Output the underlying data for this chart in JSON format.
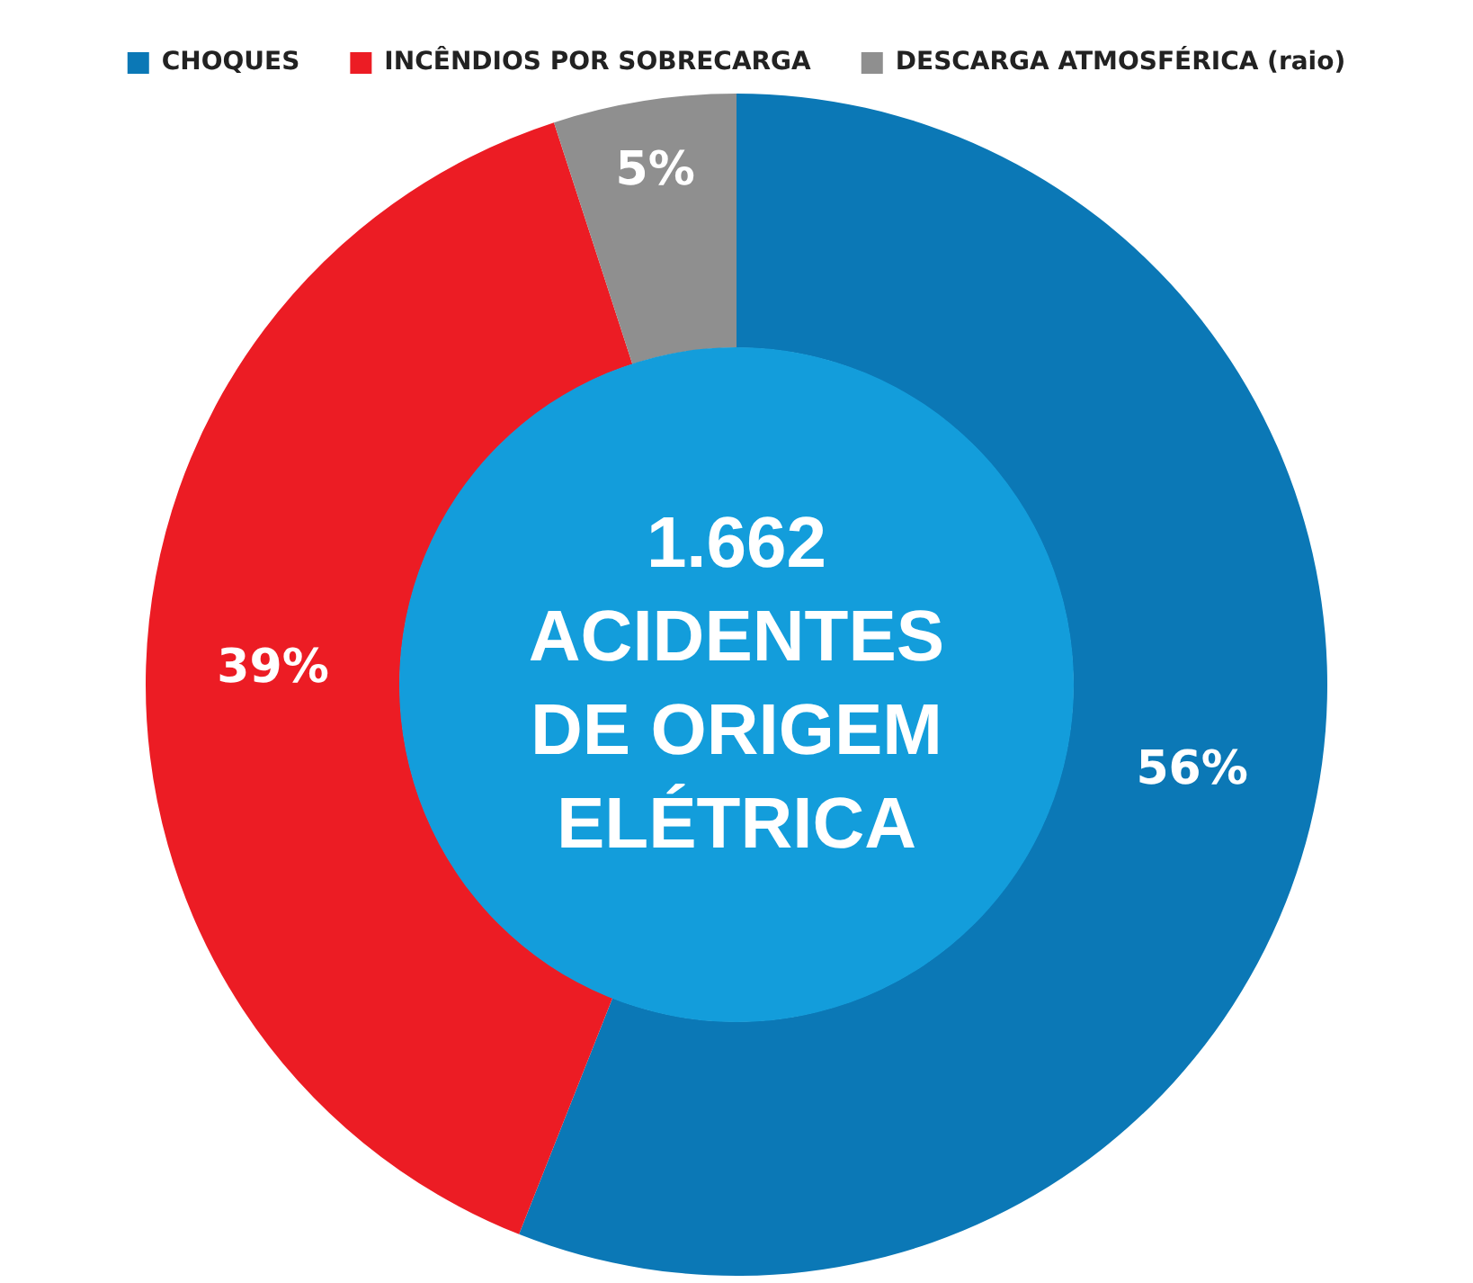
{
  "chart_data": {
    "type": "donut",
    "categories": [
      "CHOQUES",
      "INCÊNDIOS POR SOBRECARGA",
      "DESCARGA ATMOSFÉRICA (raio)"
    ],
    "values": [
      56,
      39,
      5
    ],
    "colors": [
      "#0b78b6",
      "#ec1c24",
      "#8f8f8f"
    ],
    "value_labels": [
      "56%",
      "39%",
      "5%"
    ],
    "legend": "top",
    "annotations": [
      "1.662",
      "ACIDENTES",
      "DE ORIGEM",
      "ELÉTRICA"
    ]
  }
}
